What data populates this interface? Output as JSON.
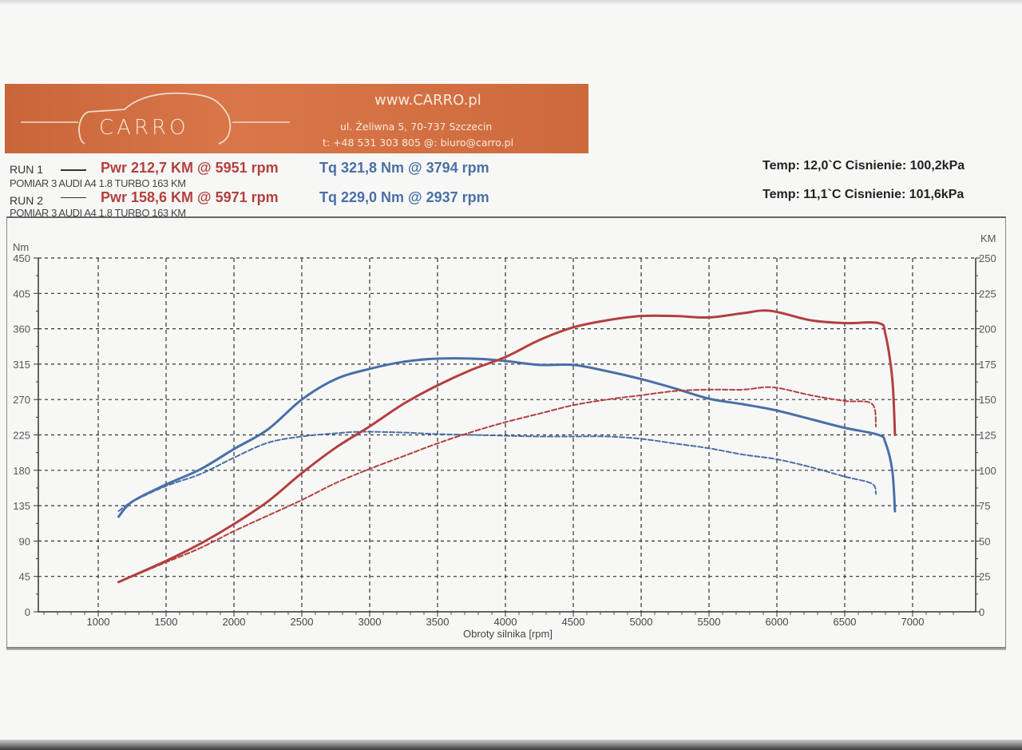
{
  "banner": {
    "logo_text": "CARRO",
    "website": "www.CARRO.pl",
    "address": "ul. Żeliwna 5, 70-737 Szczecin",
    "contact": "t: +48 531 303 805   @: biuro@carro.pl",
    "color": "#d2703f"
  },
  "runs": [
    {
      "label": "RUN 1",
      "power": "Pwr  212,7 KM @ 5951 rpm",
      "torque": "Tq 321,8 Nm @ 3794 rpm",
      "description": "POMIAR 3 AUDI A4 1.8 TURBO 163 KM",
      "conditions": "Temp: 12,0`C   Cisnienie: 100,2kPa"
    },
    {
      "label": "RUN 2",
      "power": "Pwr  158,6 KM @ 5971 rpm",
      "torque": "Tq 229,0 Nm @ 2937 rpm",
      "description": "POMIAR 3 AUDI A4 1.8 TURBO 163 KM",
      "conditions": "Temp: 11,1`C   Cisnienie: 101,6kPa"
    }
  ],
  "colors": {
    "power": "#b3403f",
    "torque": "#4a6fa8",
    "grid": "#333333"
  },
  "chart_data": {
    "type": "line",
    "title": "",
    "xlabel": "Obroty silnika [rpm]",
    "ylabel": "Nm",
    "y2label": "KM",
    "xlim": [
      500,
      7400
    ],
    "ylim": [
      0,
      450
    ],
    "y2lim": [
      0,
      250
    ],
    "grid": true,
    "x_ticks": [
      1000,
      1500,
      2000,
      2500,
      3000,
      3500,
      4000,
      4500,
      5000,
      5500,
      6000,
      6500,
      7000
    ],
    "y_ticks": [
      0,
      45,
      90,
      135,
      180,
      225,
      270,
      315,
      360,
      405,
      450
    ],
    "y2_ticks": [
      0,
      25,
      50,
      75,
      100,
      125,
      150,
      175,
      200,
      225,
      250
    ],
    "series": [
      {
        "name": "RUN 1 Torque [Nm]",
        "axis": "left",
        "style": "solid",
        "color": "#4a6fa8",
        "x": [
          1150,
          1250,
          1500,
          1750,
          2000,
          2250,
          2500,
          2750,
          3000,
          3250,
          3500,
          3794,
          4000,
          4250,
          4500,
          4750,
          5000,
          5250,
          5500,
          5750,
          6000,
          6250,
          6500,
          6750,
          6800,
          6850,
          6870
        ],
        "values": [
          121,
          140,
          162,
          181,
          207,
          232,
          270,
          296,
          309,
          318,
          322,
          321.8,
          319,
          314,
          314,
          306,
          296,
          284,
          271,
          264,
          256,
          245,
          234,
          225,
          215,
          180,
          128
        ]
      },
      {
        "name": "RUN 2 Torque [Nm]",
        "axis": "left",
        "style": "dashed",
        "color": "#4a6fa8",
        "x": [
          1150,
          1250,
          1500,
          1750,
          2000,
          2250,
          2500,
          2750,
          2937,
          3250,
          3500,
          3750,
          4000,
          4250,
          4500,
          4750,
          5000,
          5250,
          5500,
          5750,
          6000,
          6250,
          6500,
          6700,
          6730
        ],
        "values": [
          128,
          140,
          160,
          175,
          196,
          215,
          223,
          227,
          229,
          228,
          226,
          225,
          224,
          223,
          223,
          223,
          220,
          214,
          208,
          200,
          194,
          184,
          172,
          163,
          150
        ]
      },
      {
        "name": "RUN 1 Power [KM]",
        "axis": "right",
        "style": "solid",
        "color": "#b3403f",
        "x": [
          1150,
          1500,
          1750,
          2000,
          2250,
          2500,
          2750,
          3000,
          3250,
          3500,
          3750,
          4000,
          4250,
          4500,
          4750,
          5000,
          5250,
          5500,
          5750,
          5951,
          6250,
          6500,
          6750,
          6800,
          6850,
          6870
        ],
        "values": [
          21,
          36,
          48,
          62,
          78,
          98,
          116,
          131,
          147,
          160,
          171,
          180,
          192,
          201,
          206,
          209,
          209,
          208,
          211,
          212.7,
          206,
          204,
          204,
          196,
          165,
          125
        ]
      },
      {
        "name": "RUN 2 Power [KM]",
        "axis": "right",
        "style": "dashed",
        "color": "#b3403f",
        "x": [
          1150,
          1500,
          1750,
          2000,
          2250,
          2500,
          2750,
          3000,
          3250,
          3500,
          3750,
          4000,
          4250,
          4500,
          4750,
          5000,
          5250,
          5500,
          5750,
          5971,
          6250,
          6500,
          6700,
          6730
        ],
        "values": [
          21,
          35,
          45,
          57,
          68,
          79,
          91,
          101,
          110,
          119,
          127,
          134,
          140,
          146,
          150,
          153,
          156,
          157,
          157,
          158.6,
          153,
          149,
          147,
          131
        ]
      }
    ]
  }
}
